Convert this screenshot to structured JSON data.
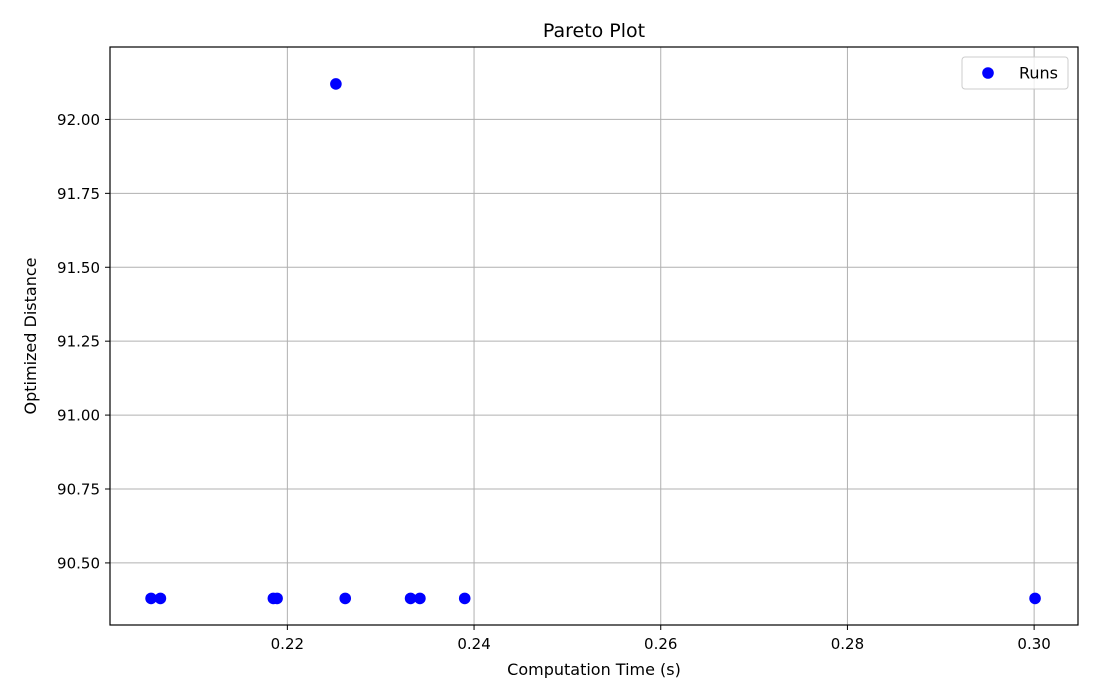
{
  "chart_data": {
    "type": "scatter",
    "title": "Pareto Plot",
    "xlabel": "Computation Time (s)",
    "ylabel": "Optimized Distance",
    "xlim": [
      0.201,
      0.3047
    ],
    "ylim": [
      90.29,
      92.245
    ],
    "xticks": [
      0.22,
      0.24,
      0.26,
      0.28,
      0.3
    ],
    "xtick_labels": [
      "0.22",
      "0.24",
      "0.26",
      "0.28",
      "0.30"
    ],
    "yticks": [
      90.5,
      90.75,
      91.0,
      91.25,
      91.5,
      91.75,
      92.0
    ],
    "ytick_labels": [
      "90.50",
      "90.75",
      "91.00",
      "91.25",
      "91.50",
      "91.75",
      "92.00"
    ],
    "grid": true,
    "legend_position": "top-right",
    "series": [
      {
        "name": "Runs",
        "color": "#0000ff",
        "points": [
          {
            "x": 0.2054,
            "y": 90.38
          },
          {
            "x": 0.2064,
            "y": 90.38
          },
          {
            "x": 0.2185,
            "y": 90.38
          },
          {
            "x": 0.2189,
            "y": 90.38
          },
          {
            "x": 0.2252,
            "y": 92.12
          },
          {
            "x": 0.2262,
            "y": 90.38
          },
          {
            "x": 0.2332,
            "y": 90.38
          },
          {
            "x": 0.2342,
            "y": 90.38
          },
          {
            "x": 0.239,
            "y": 90.38
          },
          {
            "x": 0.3001,
            "y": 90.38
          }
        ]
      }
    ]
  }
}
